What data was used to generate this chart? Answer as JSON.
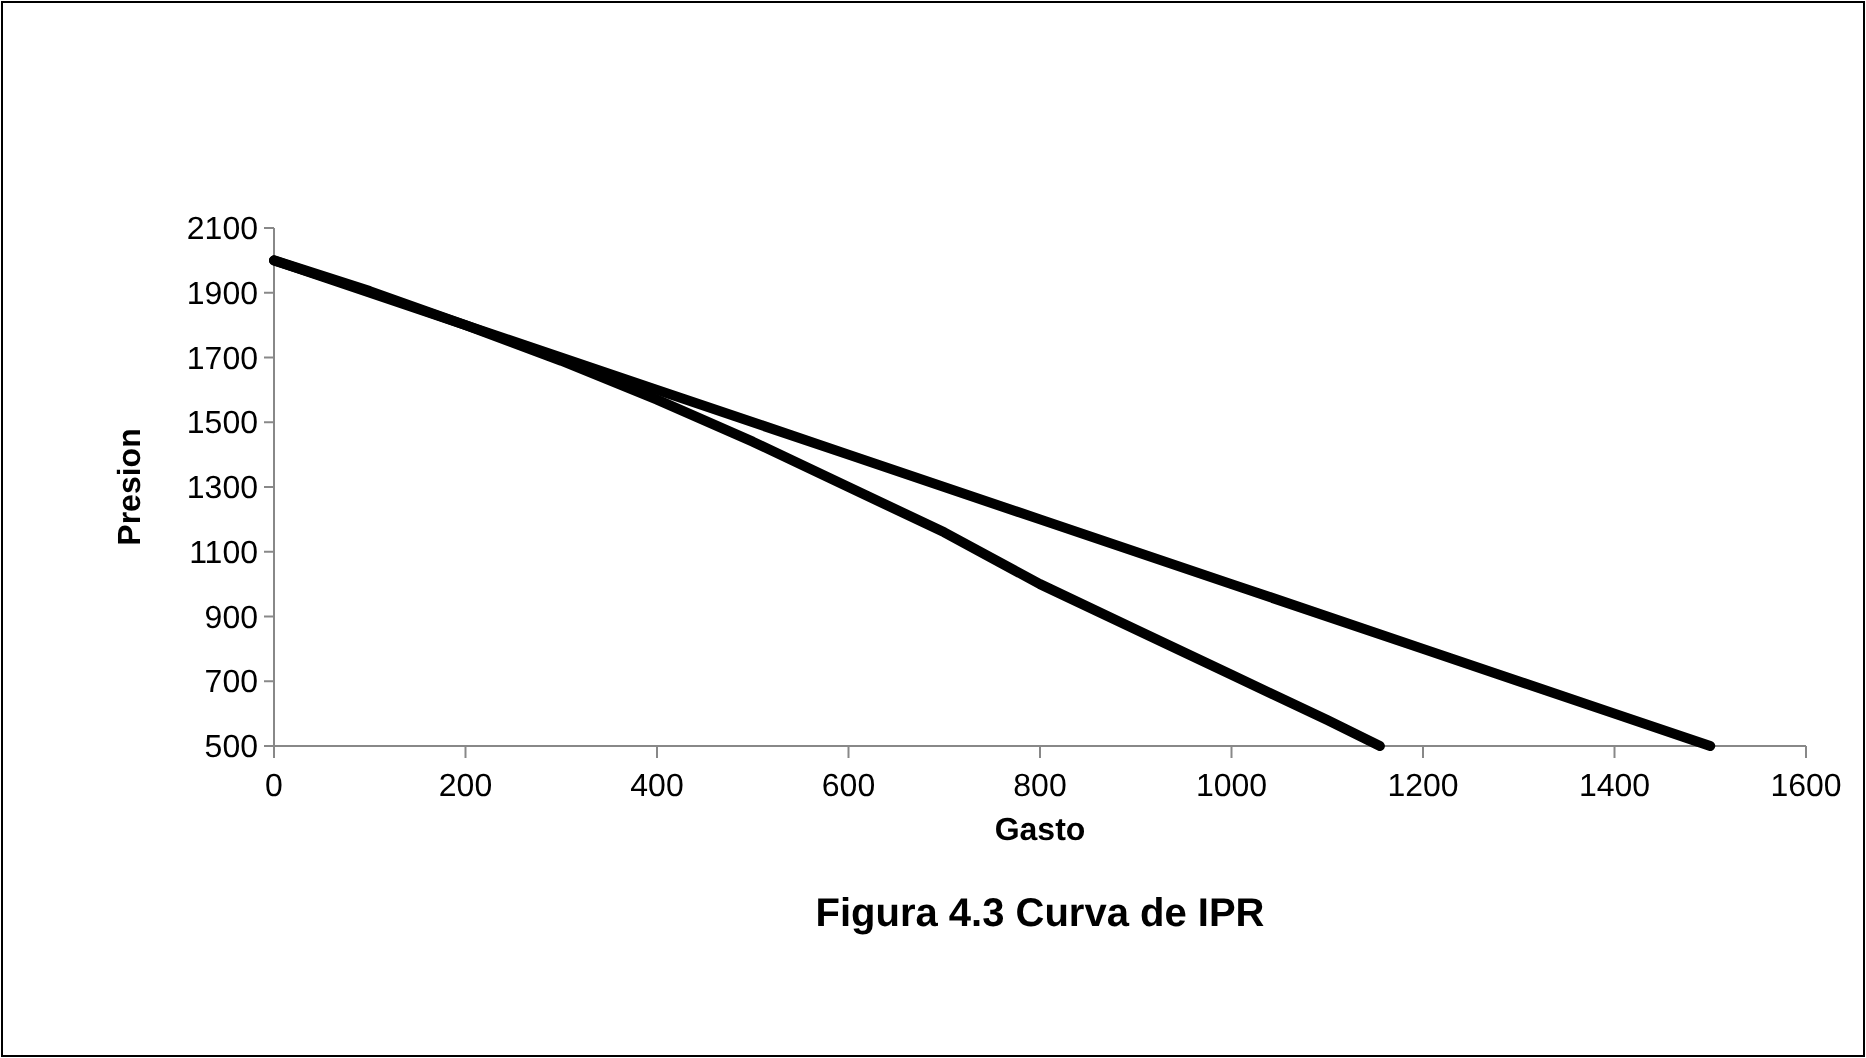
{
  "chart_data": {
    "type": "line",
    "title": "Figura 4.3 Curva de IPR",
    "xlabel": "Gasto",
    "ylabel": "Presion",
    "xlim": [
      0,
      1600
    ],
    "xticks": [
      0,
      200,
      400,
      600,
      800,
      1000,
      1200,
      1400,
      1600
    ],
    "ylim": [
      500,
      2100
    ],
    "yticks": [
      500,
      700,
      900,
      1100,
      1300,
      1500,
      1700,
      1900,
      2100
    ],
    "grid": false,
    "marker": "none",
    "line_style": "solid",
    "series": [
      {
        "color": "#000000",
        "x": [
          0,
          200,
          400,
          600,
          800,
          1000,
          1200,
          1400,
          1500
        ],
        "values": [
          2000,
          1800,
          1600,
          1400,
          1200,
          1000,
          800,
          600,
          500
        ]
      },
      {
        "color": "#000000",
        "x": [
          0,
          100,
          200,
          300,
          400,
          500,
          600,
          700,
          800,
          900,
          1000,
          1100,
          1155
        ],
        "values": [
          2000,
          1905,
          1800,
          1690,
          1570,
          1440,
          1300,
          1160,
          1000,
          860,
          720,
          580,
          500
        ]
      }
    ]
  }
}
